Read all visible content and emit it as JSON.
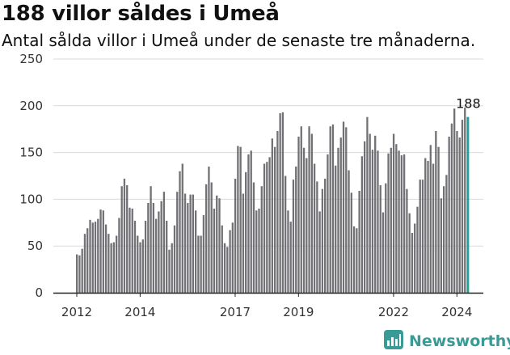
{
  "header": {
    "title": "188 villor såldes i Umeå",
    "subtitle": "Antal sålda villor i Umeå under de senaste tre månaderna."
  },
  "brand": {
    "name": "Newsworthy",
    "icon": "newsworthy-logo-icon",
    "color": "#3a9a96"
  },
  "colors": {
    "bar": "#717074",
    "highlight": "#22a09b",
    "grid": "#d9d9d9",
    "axis": "#222222"
  },
  "chart_data": {
    "type": "bar",
    "title": "188 villor såldes i Umeå",
    "subtitle": "Antal sålda villor i Umeå under de senaste tre månaderna.",
    "ylim": [
      0,
      250
    ],
    "yticks": [
      "0",
      "50",
      "100",
      "150",
      "200",
      "250"
    ],
    "xticks": [
      "2012",
      "2014",
      "2017",
      "2019",
      "2022",
      "2024"
    ],
    "grid": true,
    "annotation": {
      "label": "188",
      "value": 188
    },
    "values": [
      41,
      40,
      47,
      63,
      69,
      78,
      75,
      76,
      79,
      89,
      88,
      73,
      63,
      53,
      54,
      61,
      80,
      114,
      122,
      115,
      91,
      90,
      77,
      61,
      54,
      57,
      77,
      96,
      114,
      96,
      79,
      87,
      98,
      108,
      77,
      46,
      53,
      72,
      108,
      130,
      138,
      106,
      96,
      105,
      105,
      88,
      61,
      61,
      83,
      116,
      135,
      118,
      90,
      104,
      101,
      72,
      53,
      49,
      67,
      75,
      122,
      157,
      156,
      106,
      129,
      148,
      152,
      118,
      88,
      90,
      114,
      138,
      140,
      145,
      165,
      156,
      173,
      192,
      193,
      125,
      88,
      76,
      121,
      135,
      167,
      178,
      155,
      144,
      178,
      170,
      138,
      119,
      87,
      111,
      122,
      148,
      178,
      180,
      136,
      155,
      166,
      183,
      177,
      131,
      107,
      71,
      69,
      109,
      146,
      162,
      188,
      170,
      153,
      168,
      152,
      115,
      86,
      117,
      149,
      155,
      170,
      159,
      152,
      147,
      148,
      111,
      85,
      64,
      74,
      92,
      121,
      121,
      144,
      141,
      158,
      138,
      173,
      156,
      101,
      114,
      126,
      167,
      181,
      197,
      173,
      166,
      185,
      198,
      188
    ]
  }
}
